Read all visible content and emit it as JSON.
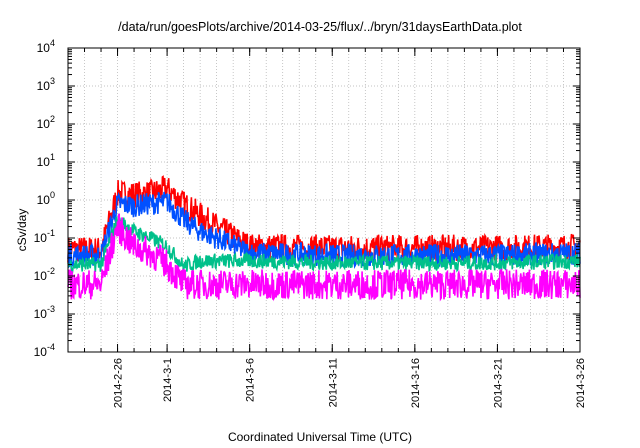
{
  "chart_data": {
    "type": "line",
    "title": "/data/run/goesPlots/archive/2014-03-25/flux/../bryn/31daysEarthData.plot",
    "xlabel": "Coordinated Universal Time (UTC)",
    "ylabel": "cSv/day",
    "y_scale": "log",
    "ylim": [
      0.0001,
      10000
    ],
    "y_ticks": [
      {
        "base": "10",
        "exp": "-4"
      },
      {
        "base": "10",
        "exp": "-3"
      },
      {
        "base": "10",
        "exp": "-2"
      },
      {
        "base": "10",
        "exp": "-1"
      },
      {
        "base": "10",
        "exp": "0"
      },
      {
        "base": "10",
        "exp": "1"
      },
      {
        "base": "10",
        "exp": "2"
      },
      {
        "base": "10",
        "exp": "3"
      },
      {
        "base": "10",
        "exp": "4"
      }
    ],
    "xlim": [
      "2014-02-23",
      "2014-03-26"
    ],
    "x_ticks": [
      "2014-2-26",
      "2014-3-1",
      "2014-3-6",
      "2014-3-11",
      "2014-3-16",
      "2014-3-21",
      "2014-3-26"
    ],
    "grid": true,
    "series": [
      {
        "color": "#ff0000",
        "x": [
          "2014-02-23",
          "2014-02-25",
          "2014-02-26",
          "2014-02-27",
          "2014-02-28",
          "2014-03-01",
          "2014-03-02",
          "2014-03-03",
          "2014-03-04",
          "2014-03-06",
          "2014-03-11",
          "2014-03-16",
          "2014-03-21",
          "2014-03-26"
        ],
        "values": [
          0.05,
          0.05,
          1.5,
          1.4,
          1.5,
          2.0,
          0.8,
          0.4,
          0.2,
          0.06,
          0.055,
          0.055,
          0.055,
          0.06
        ]
      },
      {
        "color": "#0050ff",
        "x": [
          "2014-02-23",
          "2014-02-25",
          "2014-02-26",
          "2014-02-27",
          "2014-02-28",
          "2014-03-01",
          "2014-03-02",
          "2014-03-03",
          "2014-03-04",
          "2014-03-06",
          "2014-03-11",
          "2014-03-16",
          "2014-03-21",
          "2014-03-26"
        ],
        "values": [
          0.035,
          0.035,
          0.8,
          0.7,
          0.8,
          0.9,
          0.3,
          0.15,
          0.1,
          0.04,
          0.035,
          0.035,
          0.035,
          0.04
        ]
      },
      {
        "color": "#00c08a",
        "x": [
          "2014-02-23",
          "2014-02-25",
          "2014-02-26",
          "2014-02-27",
          "2014-02-28",
          "2014-03-01",
          "2014-03-02",
          "2014-03-03",
          "2014-03-04",
          "2014-03-06",
          "2014-03-11",
          "2014-03-16",
          "2014-03-21",
          "2014-03-26"
        ],
        "values": [
          0.02,
          0.02,
          0.3,
          0.15,
          0.1,
          0.06,
          0.018,
          0.025,
          0.025,
          0.025,
          0.022,
          0.022,
          0.022,
          0.025
        ]
      },
      {
        "color": "#ff00ff",
        "x": [
          "2014-02-23",
          "2014-02-25",
          "2014-02-26",
          "2014-02-27",
          "2014-02-28",
          "2014-03-01",
          "2014-03-02",
          "2014-03-03",
          "2014-03-04",
          "2014-03-06",
          "2014-03-11",
          "2014-03-16",
          "2014-03-21",
          "2014-03-26"
        ],
        "values": [
          0.006,
          0.006,
          0.2,
          0.06,
          0.04,
          0.02,
          0.006,
          0.006,
          0.006,
          0.006,
          0.006,
          0.006,
          0.006,
          0.006
        ]
      }
    ]
  }
}
